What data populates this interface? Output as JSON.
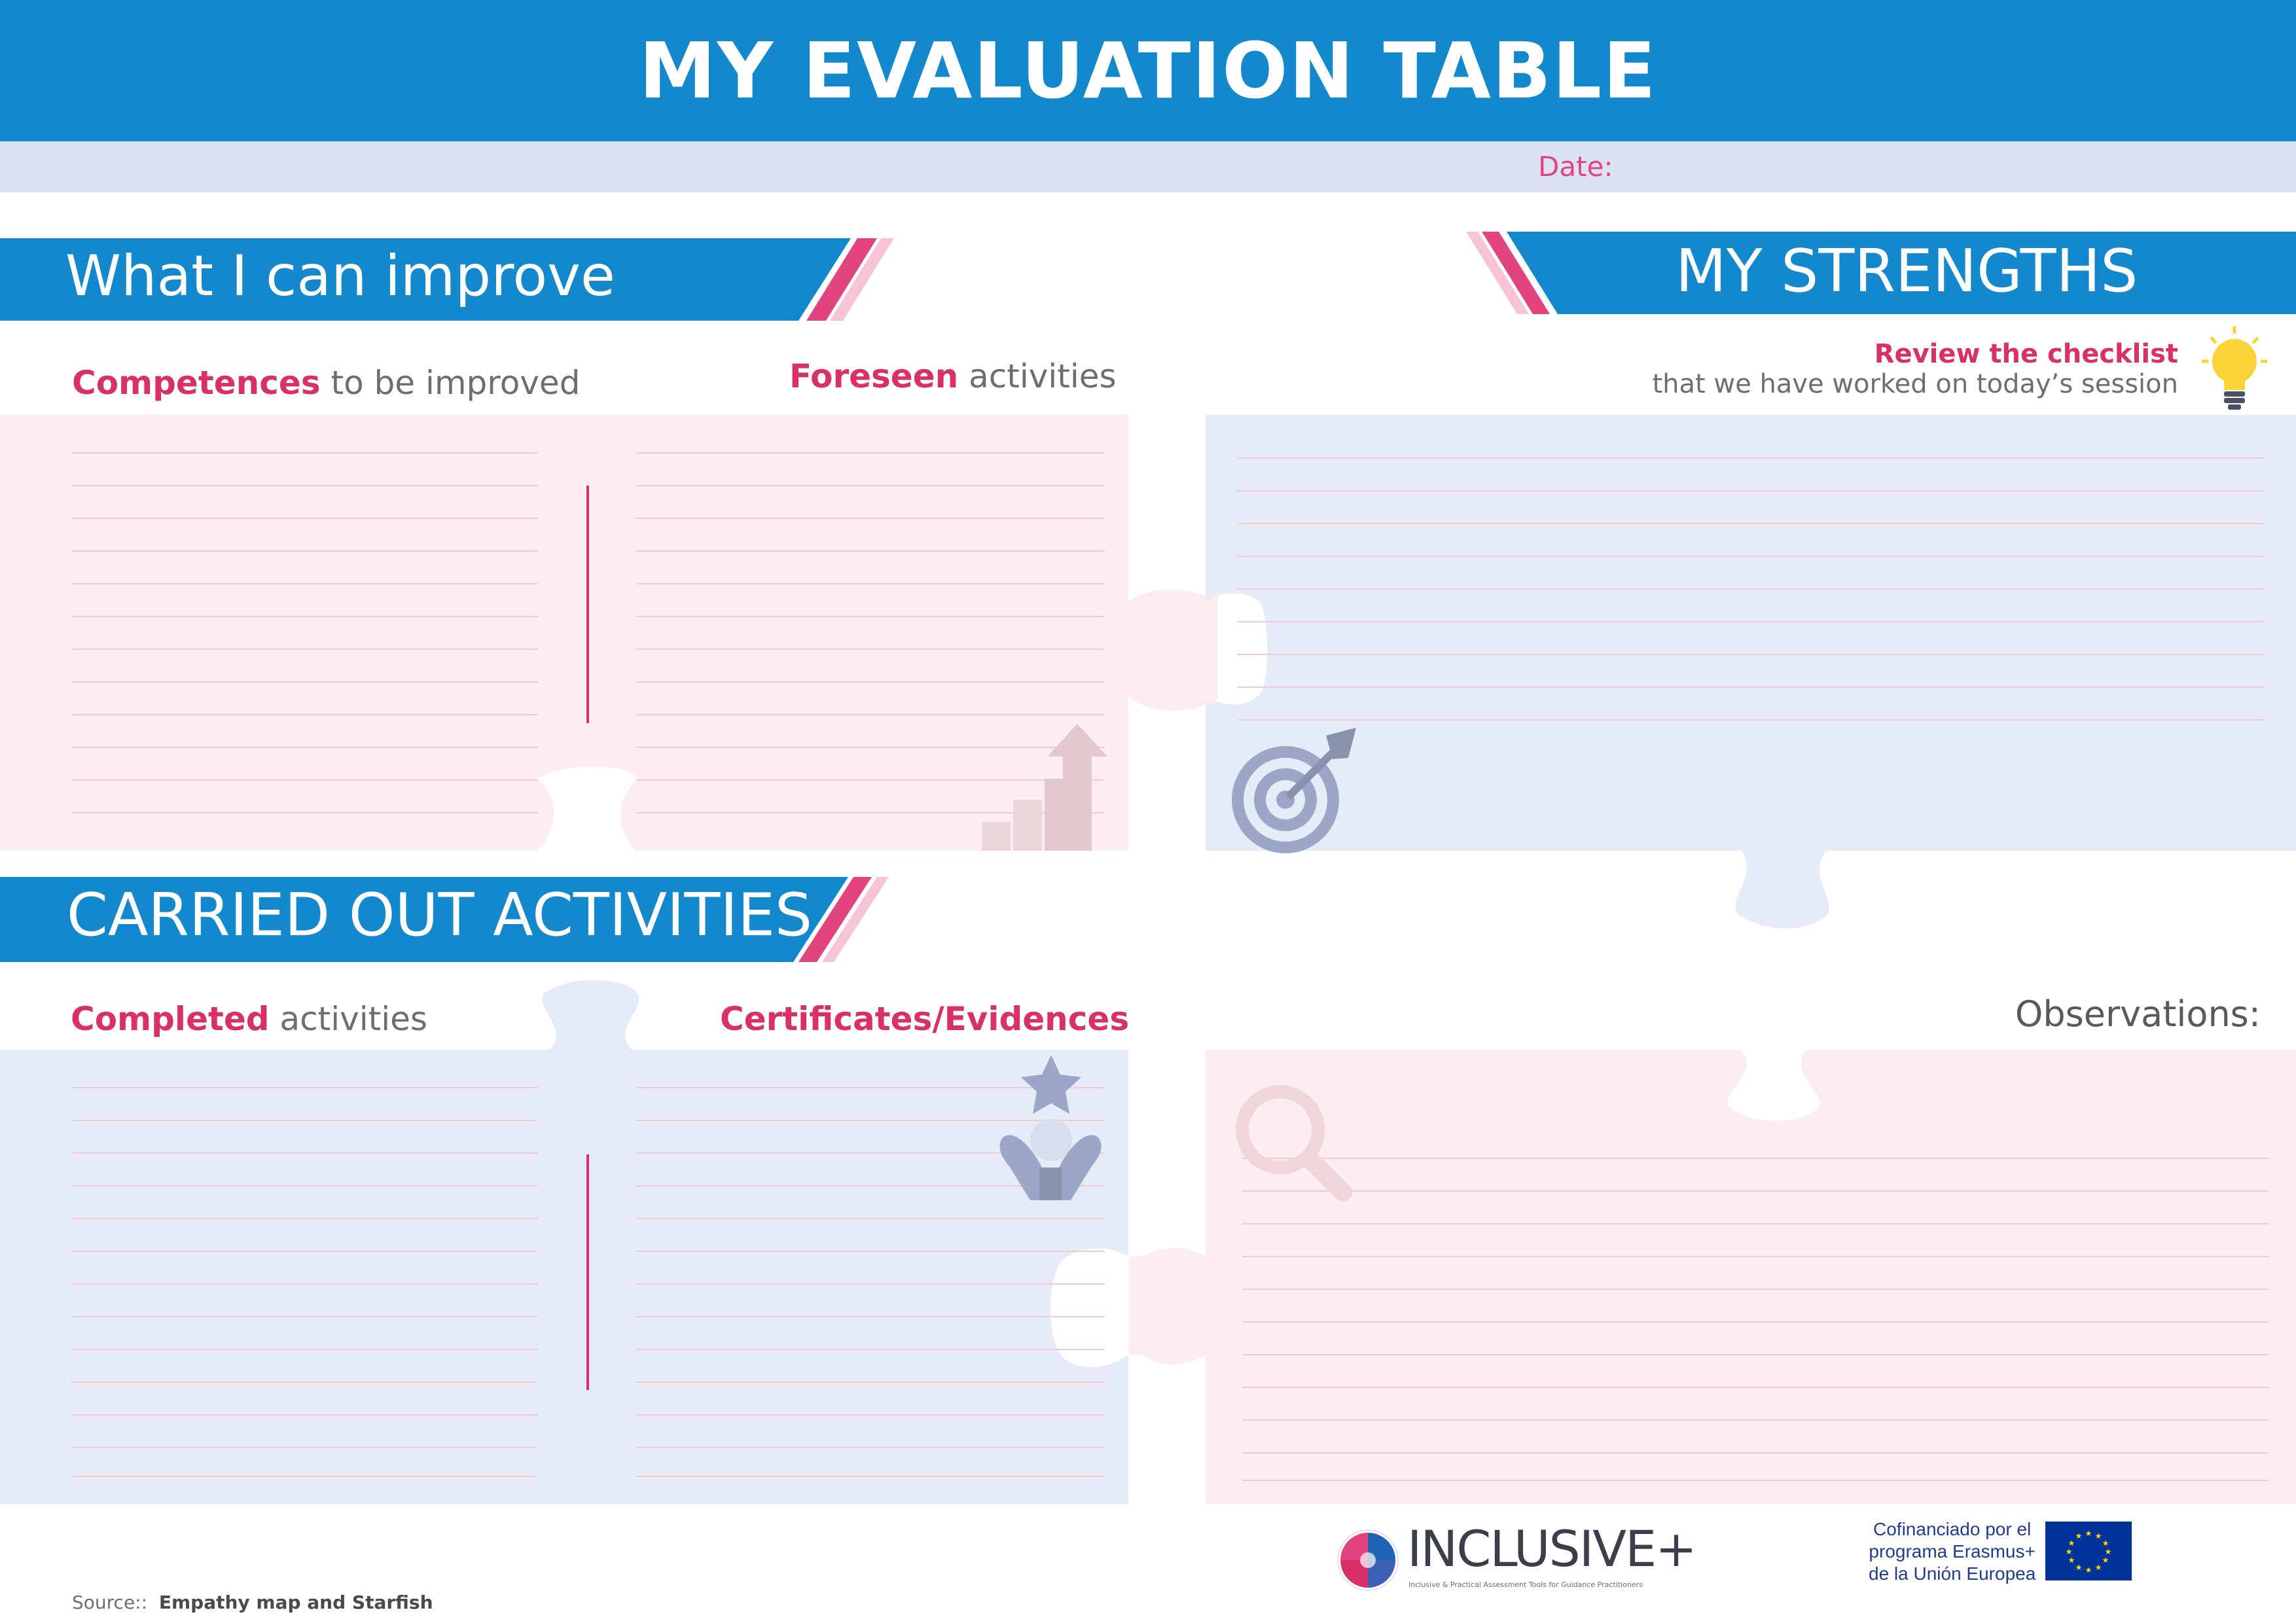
{
  "header": {
    "title": "MY EVALUATION TABLE",
    "date_label": "Date:"
  },
  "improve": {
    "banner": "What I can improve",
    "competences_highlight": "Competences",
    "competences_rest": " to be improved",
    "foreseen_highlight": "Foreseen",
    "foreseen_rest": " activities"
  },
  "strengths": {
    "banner": "MY STRENGTHS",
    "review_highlight": "Review the checklist",
    "review_rest": "that we have worked on today’s session"
  },
  "carried": {
    "banner": "CARRIED OUT ACTIVITIES",
    "completed_highlight": "Completed",
    "completed_rest": " activities",
    "certificates": "Certificates/Evidences"
  },
  "observations": {
    "label": "Observations:"
  },
  "footer": {
    "source_prefix": "Source::",
    "source_text": "Empathy map and Starfish",
    "logo_name": "INCLUSIVE+",
    "logo_tagline": "Inclusive & Practical Assessment Tools for Guidance Practitioners",
    "eu_line1": "Cofinanciado por el",
    "eu_line2": "programa Erasmus+",
    "eu_line3": "de la Unión Europea"
  },
  "colors": {
    "brand_blue": "#1488cc",
    "accent_pink": "#d9306a",
    "panel_pink": "#fbedf0",
    "panel_blue": "#e6ecf7"
  },
  "icons": [
    "growth-arrow-icon",
    "target-icon",
    "lightbulb-icon",
    "award-person-icon",
    "magnifier-icon",
    "puzzle-logo-icon",
    "eu-flag-icon"
  ]
}
